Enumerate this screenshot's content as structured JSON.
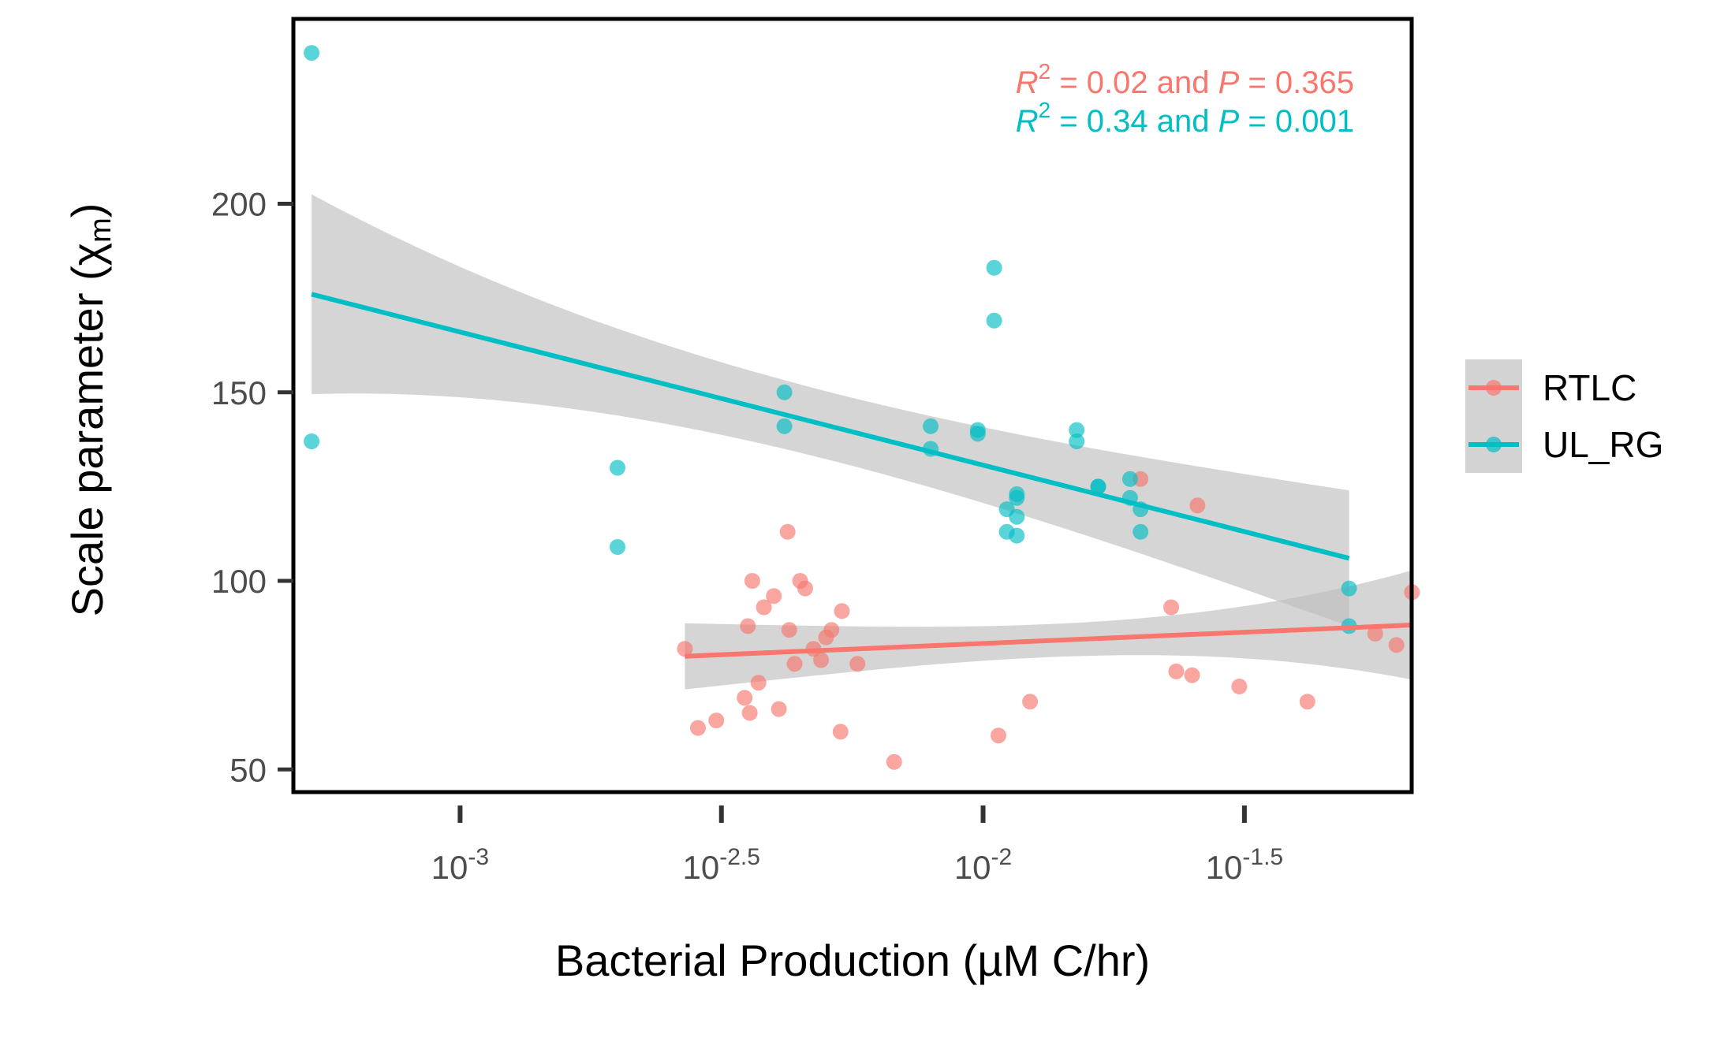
{
  "chart_data": {
    "type": "scatter",
    "xlabel": "Bacterial Production (µM C/hr)",
    "ylabel": "Scale parameter (χ",
    "ylabel_sub": "m",
    "ylabel_close": ")",
    "x_scale": "log10",
    "xlim": [
      0.00048,
      0.066
    ],
    "ylim": [
      44,
      249
    ],
    "x_ticks": [
      {
        "value": 0.001,
        "base": "10",
        "exp": "-3"
      },
      {
        "value": 0.00316,
        "base": "10",
        "exp": "-2.5"
      },
      {
        "value": 0.01,
        "base": "10",
        "exp": "-2"
      },
      {
        "value": 0.0316,
        "base": "10",
        "exp": "-1.5"
      }
    ],
    "y_ticks": [
      50,
      100,
      150,
      200
    ],
    "grid": false,
    "legend_position": "right",
    "legend": [
      {
        "name": "RTLC",
        "color": "#F8766D"
      },
      {
        "name": "UL_RG",
        "color": "#00BFC4"
      }
    ],
    "annotations": [
      {
        "r_label": "R",
        "r_sup": "2",
        "mid": " = 0.02 and ",
        "p_label": "P",
        "tail": " = 0.365",
        "color": "#F8766D"
      },
      {
        "r_label": "R",
        "r_sup": "2",
        "mid": " = 0.34 and ",
        "p_label": "P",
        "tail": " = 0.001",
        "color": "#00BFC4"
      }
    ],
    "series": [
      {
        "name": "RTLC",
        "color": "#F8766D",
        "points": [
          [
            0.00269,
            82
          ],
          [
            0.00285,
            61
          ],
          [
            0.00309,
            63
          ],
          [
            0.0035,
            69
          ],
          [
            0.00355,
            88
          ],
          [
            0.00358,
            65
          ],
          [
            0.00362,
            100
          ],
          [
            0.00372,
            73
          ],
          [
            0.00381,
            93
          ],
          [
            0.00398,
            96
          ],
          [
            0.00407,
            66
          ],
          [
            0.00423,
            113
          ],
          [
            0.00426,
            87
          ],
          [
            0.00436,
            78
          ],
          [
            0.00447,
            100
          ],
          [
            0.00457,
            98
          ],
          [
            0.00474,
            82
          ],
          [
            0.0049,
            79
          ],
          [
            0.00501,
            85
          ],
          [
            0.00513,
            87
          ],
          [
            0.00534,
            60
          ],
          [
            0.00537,
            92
          ],
          [
            0.00575,
            78
          ],
          [
            0.00676,
            52
          ],
          [
            0.0107,
            59
          ],
          [
            0.0123,
            68
          ],
          [
            0.02,
            127
          ],
          [
            0.0229,
            93
          ],
          [
            0.0234,
            76
          ],
          [
            0.0251,
            75
          ],
          [
            0.0257,
            120
          ],
          [
            0.0309,
            72
          ],
          [
            0.0417,
            68
          ],
          [
            0.0562,
            86
          ],
          [
            0.0617,
            83
          ],
          [
            0.0661,
            97
          ]
        ]
      },
      {
        "name": "UL_RG",
        "color": "#00BFC4",
        "points": [
          [
            0.00052,
            240
          ],
          [
            0.00052,
            137
          ],
          [
            0.002,
            130
          ],
          [
            0.002,
            109
          ],
          [
            0.00417,
            150
          ],
          [
            0.00417,
            141
          ],
          [
            0.00794,
            141
          ],
          [
            0.00794,
            135
          ],
          [
            0.00977,
            140
          ],
          [
            0.00977,
            139
          ],
          [
            0.0105,
            183
          ],
          [
            0.0105,
            169
          ],
          [
            0.0111,
            119
          ],
          [
            0.0111,
            113
          ],
          [
            0.0116,
            123
          ],
          [
            0.0116,
            122
          ],
          [
            0.0116,
            117
          ],
          [
            0.0116,
            112
          ],
          [
            0.0151,
            140
          ],
          [
            0.0151,
            137
          ],
          [
            0.0166,
            125
          ],
          [
            0.0166,
            125
          ],
          [
            0.0191,
            127
          ],
          [
            0.0191,
            122
          ],
          [
            0.02,
            119
          ],
          [
            0.02,
            113
          ],
          [
            0.0501,
            98
          ],
          [
            0.0501,
            88
          ]
        ]
      }
    ],
    "fits": [
      {
        "name": "RTLC",
        "color": "#F8766D",
        "x": [
          0.00269,
          0.0661
        ],
        "y": [
          80,
          88.3
        ],
        "ci_lower": [
          71,
          74
        ],
        "ci_upper": [
          88.5,
          103
        ]
      },
      {
        "name": "UL_RG",
        "color": "#00BFC4",
        "x": [
          0.00052,
          0.0501
        ],
        "y": [
          176,
          106
        ],
        "ci_lower": [
          150,
          88
        ],
        "ci_upper": [
          203,
          124
        ]
      }
    ]
  }
}
